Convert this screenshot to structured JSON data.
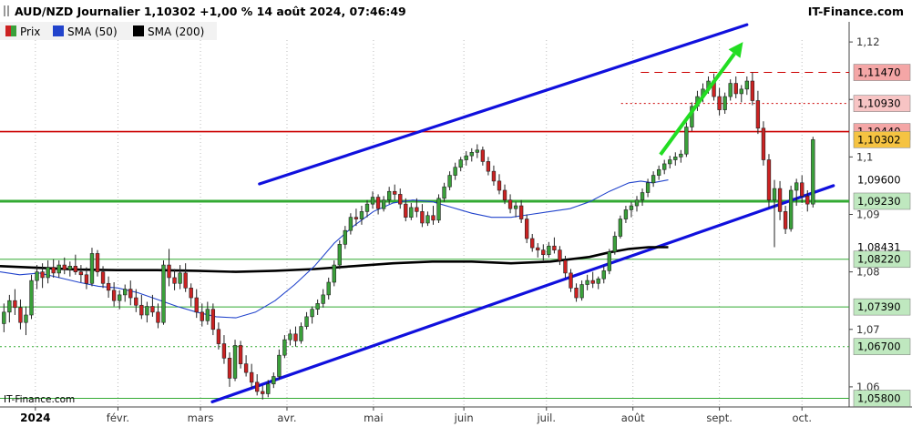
{
  "header": {
    "title": "AUD/NZD Journalier 1,10302 +1,00 % 14 août 2024, 07:46:49",
    "brand": "IT-Finance.com"
  },
  "watermark": "IT-Finance.com",
  "colors": {
    "up": "#3aa03a",
    "down": "#cc2222",
    "sma50": "#2244cc",
    "sma200": "#000000",
    "channel": "#1010dd",
    "resistance_red": "#cc0000",
    "support_green": "#33aa33",
    "arrow": "#22dd22"
  },
  "chart_data": {
    "type": "candlestick",
    "title": "AUD/NZD Journalier 1,10302 +1,00 % 14 août 2024, 07:46:49",
    "legend": [
      {
        "name": "Prix",
        "color": "#cc2222",
        "color2": "#3aa03a"
      },
      {
        "name": "SMA (50)",
        "color": "#2244cc"
      },
      {
        "name": "SMA (200)",
        "color": "#000000"
      }
    ],
    "ylim": [
      1.0565,
      1.1235
    ],
    "y_ticks": [
      {
        "value": 1.12,
        "label": "1,12"
      },
      {
        "value": 1.11,
        "label": "1,11"
      },
      {
        "value": 1.1,
        "label": "1,1"
      },
      {
        "value": 1.09,
        "label": "1,09"
      },
      {
        "value": 1.08,
        "label": "1,08"
      },
      {
        "value": 1.07,
        "label": "1,07"
      },
      {
        "value": 1.06,
        "label": "1,06"
      }
    ],
    "x_labels": [
      {
        "index": 9,
        "label": "2024",
        "bold": true
      },
      {
        "index": 30,
        "label": "févr."
      },
      {
        "index": 51,
        "label": "mars"
      },
      {
        "index": 73,
        "label": "avr."
      },
      {
        "index": 95,
        "label": "mai"
      },
      {
        "index": 118,
        "label": "juin"
      },
      {
        "index": 139,
        "label": "juil."
      },
      {
        "index": 161,
        "label": "août"
      },
      {
        "index": 183,
        "label": "sept."
      },
      {
        "index": 204,
        "label": "oct."
      }
    ],
    "x_domain": [
      0,
      216
    ],
    "candles": [
      [
        1.071,
        1.0745,
        1.0695,
        1.073
      ],
      [
        1.073,
        1.076,
        1.0712,
        1.075
      ],
      [
        1.075,
        1.077,
        1.0725,
        1.0738
      ],
      [
        1.0738,
        1.0752,
        1.07,
        1.0712
      ],
      [
        1.0712,
        1.074,
        1.069,
        1.0725
      ],
      [
        1.0725,
        1.0795,
        1.0718,
        1.0785
      ],
      [
        1.0785,
        1.0812,
        1.077,
        1.08
      ],
      [
        1.08,
        1.0815,
        1.0772,
        1.079
      ],
      [
        1.079,
        1.082,
        1.078,
        1.0808
      ],
      [
        1.0808,
        1.0822,
        1.079,
        1.0798
      ],
      [
        1.0798,
        1.082,
        1.079,
        1.0812
      ],
      [
        1.0812,
        1.0825,
        1.0796,
        1.0804
      ],
      [
        1.0804,
        1.0818,
        1.0792,
        1.081
      ],
      [
        1.081,
        1.083,
        1.0795,
        1.08
      ],
      [
        1.08,
        1.0812,
        1.0782,
        1.0795
      ],
      [
        1.0795,
        1.0808,
        1.077,
        1.078
      ],
      [
        1.078,
        1.0842,
        1.0775,
        1.0832
      ],
      [
        1.0832,
        1.0838,
        1.0792,
        1.08
      ],
      [
        1.08,
        1.081,
        1.0772,
        1.078
      ],
      [
        1.078,
        1.0792,
        1.0755,
        1.0768
      ],
      [
        1.0768,
        1.0782,
        1.074,
        1.075
      ],
      [
        1.075,
        1.0768,
        1.0735,
        1.076
      ],
      [
        1.076,
        1.0778,
        1.0748,
        1.077
      ],
      [
        1.077,
        1.0785,
        1.0742,
        1.0755
      ],
      [
        1.0755,
        1.077,
        1.073,
        1.0742
      ],
      [
        1.0742,
        1.076,
        1.0718,
        1.0725
      ],
      [
        1.0725,
        1.0748,
        1.0712,
        1.074
      ],
      [
        1.074,
        1.076,
        1.0722,
        1.073
      ],
      [
        1.073,
        1.0745,
        1.0702,
        1.0712
      ],
      [
        1.0712,
        1.082,
        1.0708,
        1.0812
      ],
      [
        1.0812,
        1.084,
        1.0775,
        1.079
      ],
      [
        1.079,
        1.0805,
        1.0768,
        1.078
      ],
      [
        1.078,
        1.0812,
        1.077,
        1.0798
      ],
      [
        1.0798,
        1.0815,
        1.0765,
        1.0772
      ],
      [
        1.0772,
        1.078,
        1.074,
        1.0755
      ],
      [
        1.0755,
        1.077,
        1.072,
        1.073
      ],
      [
        1.073,
        1.0745,
        1.0705,
        1.0715
      ],
      [
        1.0715,
        1.0748,
        1.0708,
        1.0735
      ],
      [
        1.0735,
        1.0745,
        1.069,
        1.07
      ],
      [
        1.07,
        1.0712,
        1.0665,
        1.0675
      ],
      [
        1.0675,
        1.069,
        1.064,
        1.065
      ],
      [
        1.065,
        1.066,
        1.06,
        1.0615
      ],
      [
        1.0615,
        1.0682,
        1.061,
        1.0672
      ],
      [
        1.0672,
        1.068,
        1.0632,
        1.064
      ],
      [
        1.064,
        1.0655,
        1.0618,
        1.0625
      ],
      [
        1.0625,
        1.064,
        1.0598,
        1.0608
      ],
      [
        1.0608,
        1.0622,
        1.0585,
        1.0592
      ],
      [
        1.0592,
        1.0602,
        1.0578,
        1.0588
      ],
      [
        1.0588,
        1.0612,
        1.0582,
        1.0605
      ],
      [
        1.0605,
        1.0625,
        1.0598,
        1.0618
      ],
      [
        1.0618,
        1.0665,
        1.0612,
        1.0655
      ],
      [
        1.0655,
        1.069,
        1.065,
        1.0682
      ],
      [
        1.0682,
        1.07,
        1.0672,
        1.0692
      ],
      [
        1.0692,
        1.0705,
        1.067,
        1.068
      ],
      [
        1.068,
        1.0712,
        1.0675,
        1.0705
      ],
      [
        1.0705,
        1.073,
        1.07,
        1.0722
      ],
      [
        1.0722,
        1.074,
        1.071,
        1.0735
      ],
      [
        1.0735,
        1.0752,
        1.0725,
        1.0745
      ],
      [
        1.0745,
        1.077,
        1.0738,
        1.076
      ],
      [
        1.076,
        1.079,
        1.0752,
        1.0782
      ],
      [
        1.0782,
        1.082,
        1.0775,
        1.0812
      ],
      [
        1.0812,
        1.0855,
        1.0805,
        1.0848
      ],
      [
        1.0848,
        1.088,
        1.084,
        1.0872
      ],
      [
        1.0872,
        1.0902,
        1.0865,
        1.0895
      ],
      [
        1.0895,
        1.091,
        1.088,
        1.0892
      ],
      [
        1.0892,
        1.0915,
        1.0882,
        1.0905
      ],
      [
        1.0905,
        1.0925,
        1.0895,
        1.0918
      ],
      [
        1.0918,
        1.094,
        1.091,
        1.093
      ],
      [
        1.093,
        1.0935,
        1.09,
        1.091
      ],
      [
        1.091,
        1.0932,
        1.0905,
        1.0925
      ],
      [
        1.0925,
        1.0948,
        1.0918,
        1.094
      ],
      [
        1.094,
        1.0952,
        1.0925,
        1.0935
      ],
      [
        1.0935,
        1.0945,
        1.091,
        1.0918
      ],
      [
        1.0918,
        1.0928,
        1.0888,
        1.0895
      ],
      [
        1.0895,
        1.092,
        1.089,
        1.0912
      ],
      [
        1.0912,
        1.0928,
        1.0895,
        1.0905
      ],
      [
        1.0905,
        1.0918,
        1.0878,
        1.0885
      ],
      [
        1.0885,
        1.0905,
        1.088,
        1.0898
      ],
      [
        1.0898,
        1.0915,
        1.0882,
        1.089
      ],
      [
        1.089,
        1.0935,
        1.0885,
        1.0928
      ],
      [
        1.0928,
        1.0955,
        1.0922,
        1.0948
      ],
      [
        1.0948,
        1.0975,
        1.0942,
        1.0968
      ],
      [
        1.0968,
        1.099,
        1.096,
        1.0982
      ],
      [
        1.0982,
        1.1,
        1.0975,
        1.0995
      ],
      [
        1.0995,
        1.101,
        1.0985,
        1.1002
      ],
      [
        1.1002,
        1.1015,
        1.0992,
        1.1008
      ],
      [
        1.1008,
        1.1022,
        1.0998,
        1.1012
      ],
      [
        1.1012,
        1.1018,
        1.0985,
        1.0992
      ],
      [
        1.0992,
        1.1,
        1.0968,
        1.0975
      ],
      [
        1.0975,
        1.0985,
        1.095,
        1.0958
      ],
      [
        1.0958,
        1.097,
        1.0935,
        1.0942
      ],
      [
        1.0942,
        1.0952,
        1.0918,
        1.0925
      ],
      [
        1.0925,
        1.0935,
        1.0902,
        1.091
      ],
      [
        1.091,
        1.0922,
        1.0895,
        1.0915
      ],
      [
        1.0915,
        1.0925,
        1.0885,
        1.0892
      ],
      [
        1.0892,
        1.09,
        1.085,
        1.0858
      ],
      [
        1.0858,
        1.0866,
        1.0835,
        1.0842
      ],
      [
        1.0842,
        1.085,
        1.0825,
        1.0838
      ],
      [
        1.0838,
        1.0848,
        1.082,
        1.083
      ],
      [
        1.083,
        1.0852,
        1.0825,
        1.0845
      ],
      [
        1.0845,
        1.086,
        1.0832,
        1.0838
      ],
      [
        1.0838,
        1.0845,
        1.0812,
        1.082
      ],
      [
        1.082,
        1.0828,
        1.079,
        1.0798
      ],
      [
        1.0798,
        1.0805,
        1.0765,
        1.0772
      ],
      [
        1.0772,
        1.078,
        1.0748,
        1.0755
      ],
      [
        1.0755,
        1.0785,
        1.075,
        1.0778
      ],
      [
        1.0778,
        1.0795,
        1.0768,
        1.0785
      ],
      [
        1.0785,
        1.08,
        1.0772,
        1.078
      ],
      [
        1.078,
        1.0792,
        1.077,
        1.0788
      ],
      [
        1.0788,
        1.081,
        1.078,
        1.0802
      ],
      [
        1.0802,
        1.084,
        1.0796,
        1.0835
      ],
      [
        1.0835,
        1.087,
        1.083,
        1.0862
      ],
      [
        1.0862,
        1.0898,
        1.0858,
        1.0892
      ],
      [
        1.0892,
        1.0915,
        1.0885,
        1.0908
      ],
      [
        1.0908,
        1.0922,
        1.0895,
        1.0915
      ],
      [
        1.0915,
        1.0932,
        1.0905,
        1.0925
      ],
      [
        1.0925,
        1.0945,
        1.0915,
        1.0938
      ],
      [
        1.0938,
        1.0962,
        1.093,
        1.0955
      ],
      [
        1.0955,
        1.0975,
        1.0948,
        1.0968
      ],
      [
        1.0968,
        1.0985,
        1.096,
        1.0978
      ],
      [
        1.0978,
        1.0995,
        1.097,
        1.0988
      ],
      [
        1.0988,
        1.1002,
        1.098,
        1.0995
      ],
      [
        1.0995,
        1.1008,
        1.0985,
        1.1
      ],
      [
        1.1,
        1.1012,
        1.099,
        1.1005
      ],
      [
        1.1005,
        1.106,
        1.1,
        1.1052
      ],
      [
        1.1052,
        1.1095,
        1.1045,
        1.1088
      ],
      [
        1.1088,
        1.1115,
        1.108,
        1.1105
      ],
      [
        1.1105,
        1.1128,
        1.1095,
        1.1118
      ],
      [
        1.1118,
        1.114,
        1.111,
        1.1132
      ],
      [
        1.1132,
        1.1145,
        1.1098,
        1.1105
      ],
      [
        1.1105,
        1.112,
        1.1072,
        1.1082
      ],
      [
        1.1082,
        1.1112,
        1.1075,
        1.1105
      ],
      [
        1.1105,
        1.1135,
        1.1098,
        1.1128
      ],
      [
        1.1128,
        1.114,
        1.1102,
        1.111
      ],
      [
        1.111,
        1.1125,
        1.1095,
        1.1118
      ],
      [
        1.1118,
        1.114,
        1.1108,
        1.1132
      ],
      [
        1.1132,
        1.1147,
        1.109,
        1.1098
      ],
      [
        1.1098,
        1.1115,
        1.104,
        1.105
      ],
      [
        1.105,
        1.1062,
        1.0985,
        1.0995
      ],
      [
        1.0995,
        1.1005,
        1.0912,
        1.0925
      ],
      [
        1.0925,
        1.096,
        1.0843,
        1.0945
      ],
      [
        1.0945,
        1.0958,
        1.089,
        1.0905
      ],
      [
        1.0905,
        1.0915,
        1.0866,
        1.0875
      ],
      [
        1.0875,
        1.095,
        1.087,
        1.0942
      ],
      [
        1.0942,
        1.0962,
        1.0915,
        1.0955
      ],
      [
        1.0955,
        1.0968,
        1.092,
        1.0932
      ],
      [
        1.0932,
        1.0942,
        1.0905,
        1.0918
      ],
      [
        1.0918,
        1.1035,
        1.0912,
        1.103
      ]
    ],
    "sma50": [
      [
        0,
        1.08
      ],
      [
        5,
        1.0795
      ],
      [
        10,
        1.0798
      ],
      [
        15,
        1.079
      ],
      [
        20,
        1.0782
      ],
      [
        25,
        1.0775
      ],
      [
        30,
        1.0772
      ],
      [
        35,
        1.0764
      ],
      [
        40,
        1.0752
      ],
      [
        45,
        1.074
      ],
      [
        50,
        1.073
      ],
      [
        55,
        1.0722
      ],
      [
        60,
        1.072
      ],
      [
        65,
        1.073
      ],
      [
        70,
        1.075
      ],
      [
        75,
        1.0778
      ],
      [
        80,
        1.081
      ],
      [
        85,
        1.085
      ],
      [
        90,
        1.088
      ],
      [
        95,
        1.0905
      ],
      [
        100,
        1.092
      ],
      [
        105,
        1.0925
      ],
      [
        110,
        1.0922
      ],
      [
        115,
        1.0912
      ],
      [
        120,
        1.0902
      ],
      [
        125,
        1.0895
      ],
      [
        130,
        1.0895
      ],
      [
        135,
        1.09
      ],
      [
        140,
        1.0905
      ],
      [
        145,
        1.091
      ],
      [
        150,
        1.0922
      ],
      [
        155,
        1.094
      ],
      [
        160,
        1.0955
      ],
      [
        163,
        1.0958
      ],
      [
        166,
        1.0955
      ],
      [
        170,
        1.096
      ]
    ],
    "sma200": [
      [
        0,
        1.081
      ],
      [
        10,
        1.0807
      ],
      [
        20,
        1.0804
      ],
      [
        30,
        1.0803
      ],
      [
        40,
        1.0803
      ],
      [
        50,
        1.0802
      ],
      [
        60,
        1.08
      ],
      [
        70,
        1.0802
      ],
      [
        80,
        1.0805
      ],
      [
        90,
        1.081
      ],
      [
        100,
        1.0815
      ],
      [
        110,
        1.0818
      ],
      [
        120,
        1.0818
      ],
      [
        130,
        1.0815
      ],
      [
        140,
        1.0818
      ],
      [
        150,
        1.0826
      ],
      [
        155,
        1.0834
      ],
      [
        160,
        1.084
      ],
      [
        165,
        1.0843
      ],
      [
        170,
        1.0843
      ]
    ],
    "channel_upper": [
      [
        66,
        1.0953
      ],
      [
        190,
        1.123
      ]
    ],
    "channel_lower": [
      [
        54,
        1.0574
      ],
      [
        212,
        1.095
      ]
    ],
    "arrow": {
      "from": [
        168,
        1.1004
      ],
      "to": [
        189,
        1.12
      ]
    },
    "levels": [
      {
        "value": 1.1147,
        "label": "1,11470",
        "style": "dashed",
        "line_color": "#cc0000",
        "box_color": "#f4a6a6",
        "from_index": 163
      },
      {
        "value": 1.1093,
        "label": "1,10930",
        "style": "dotted",
        "line_color": "#cc0000",
        "box_color": "#f7c4c4",
        "from_index": 158
      },
      {
        "value": 1.1044,
        "label": "1,10440",
        "style": "solid",
        "line_color": "#cc0000",
        "box_color": "#f4a6a6",
        "width": 1.6
      },
      {
        "value": 1.10302,
        "label": "1,10302",
        "style": "none",
        "line_color": "#000000",
        "box_color": "#f5c342"
      },
      {
        "value": 1.096,
        "label": "1,09600",
        "style": "none",
        "line_color": "#2244cc",
        "box_color": "#ffffff",
        "text_color": "#2244cc"
      },
      {
        "value": 1.0923,
        "label": "1,09230",
        "style": "solid",
        "line_color": "#33aa33",
        "box_color": "#bfe8bf",
        "width": 3
      },
      {
        "value": 1.08431,
        "label": "1,08431",
        "style": "none",
        "line_color": "#000000",
        "box_color": "#ffffff"
      },
      {
        "value": 1.0822,
        "label": "1,08220",
        "style": "solid",
        "line_color": "#33aa33",
        "box_color": "#bfe8bf",
        "width": 1
      },
      {
        "value": 1.0739,
        "label": "1,07390",
        "style": "solid",
        "line_color": "#33aa33",
        "box_color": "#bfe8bf",
        "width": 1
      },
      {
        "value": 1.067,
        "label": "1,06700",
        "style": "dotted",
        "line_color": "#33aa33",
        "box_color": "#bfe8bf"
      },
      {
        "value": 1.058,
        "label": "1,05800",
        "style": "solid",
        "line_color": "#33aa33",
        "box_color": "#bfe8bf",
        "width": 1
      }
    ],
    "grid": "vertical-dotted",
    "legend_placement": "top-left"
  }
}
